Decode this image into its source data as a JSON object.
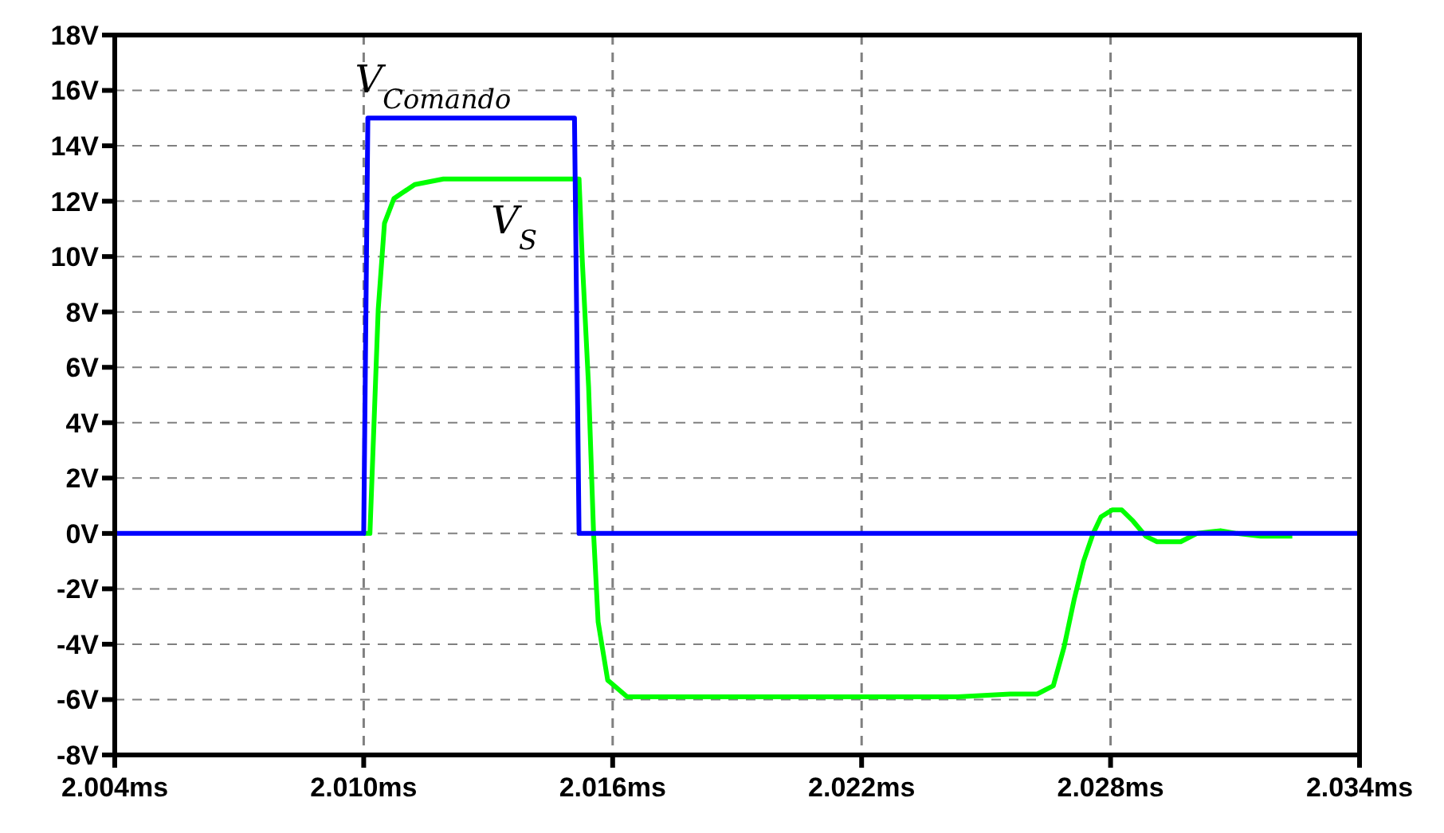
{
  "chart_data": {
    "type": "line",
    "xlim": [
      2.004,
      2.034
    ],
    "ylim": [
      -8,
      18
    ],
    "xticks": [
      {
        "value": 2.004,
        "label": "2.004ms"
      },
      {
        "value": 2.01,
        "label": "2.010ms"
      },
      {
        "value": 2.016,
        "label": "2.016ms"
      },
      {
        "value": 2.022,
        "label": "2.022ms"
      },
      {
        "value": 2.028,
        "label": "2.028ms"
      },
      {
        "value": 2.034,
        "label": "2.034ms"
      }
    ],
    "yticks": [
      {
        "value": -8,
        "label": "-8V"
      },
      {
        "value": -6,
        "label": "-6V"
      },
      {
        "value": -4,
        "label": "-4V"
      },
      {
        "value": -2,
        "label": "-2V"
      },
      {
        "value": 0,
        "label": "0V"
      },
      {
        "value": 2,
        "label": "2V"
      },
      {
        "value": 4,
        "label": "4V"
      },
      {
        "value": 6,
        "label": "6V"
      },
      {
        "value": 8,
        "label": "8V"
      },
      {
        "value": 10,
        "label": "10V"
      },
      {
        "value": 12,
        "label": "12V"
      },
      {
        "value": 14,
        "label": "14V"
      },
      {
        "value": 16,
        "label": "16V"
      },
      {
        "value": 18,
        "label": "18V"
      }
    ],
    "grid": true,
    "line_style": "solid",
    "series": [
      {
        "name": "V$_{S}$",
        "color": "#00ff00",
        "x": [
          2.01,
          2.01015,
          2.01035,
          2.0105,
          2.01073,
          2.01123,
          2.01192,
          2.01519,
          2.01527,
          2.01542,
          2.01554,
          2.01565,
          2.01588,
          2.01635,
          2.02431,
          2.02558,
          2.02623,
          2.02662,
          2.02688,
          2.02712,
          2.02735,
          2.02758,
          2.02777,
          2.02804,
          2.02827,
          2.02854,
          2.02885,
          2.02912,
          2.02969,
          2.03008,
          2.03065,
          2.03104,
          2.03162,
          2.03238
        ],
        "values": [
          0,
          0,
          8.1,
          11.2,
          12.1,
          12.6,
          12.8,
          12.8,
          9.8,
          5.3,
          0,
          -3.2,
          -5.3,
          -5.9,
          -5.9,
          -5.8,
          -5.8,
          -5.5,
          -4.1,
          -2.4,
          -1,
          0,
          0.6,
          0.85,
          0.85,
          0.45,
          -0.1,
          -0.3,
          -0.3,
          0,
          0.1,
          0,
          -0.1,
          -0.1
        ]
      },
      {
        "name": "V$_{Comando}$",
        "color": "#0000ff",
        "x": [
          2.004,
          2.01,
          2.0101,
          2.01508,
          2.01519,
          2.034
        ],
        "values": [
          0,
          0,
          15,
          15,
          0,
          0
        ]
      }
    ]
  }
}
